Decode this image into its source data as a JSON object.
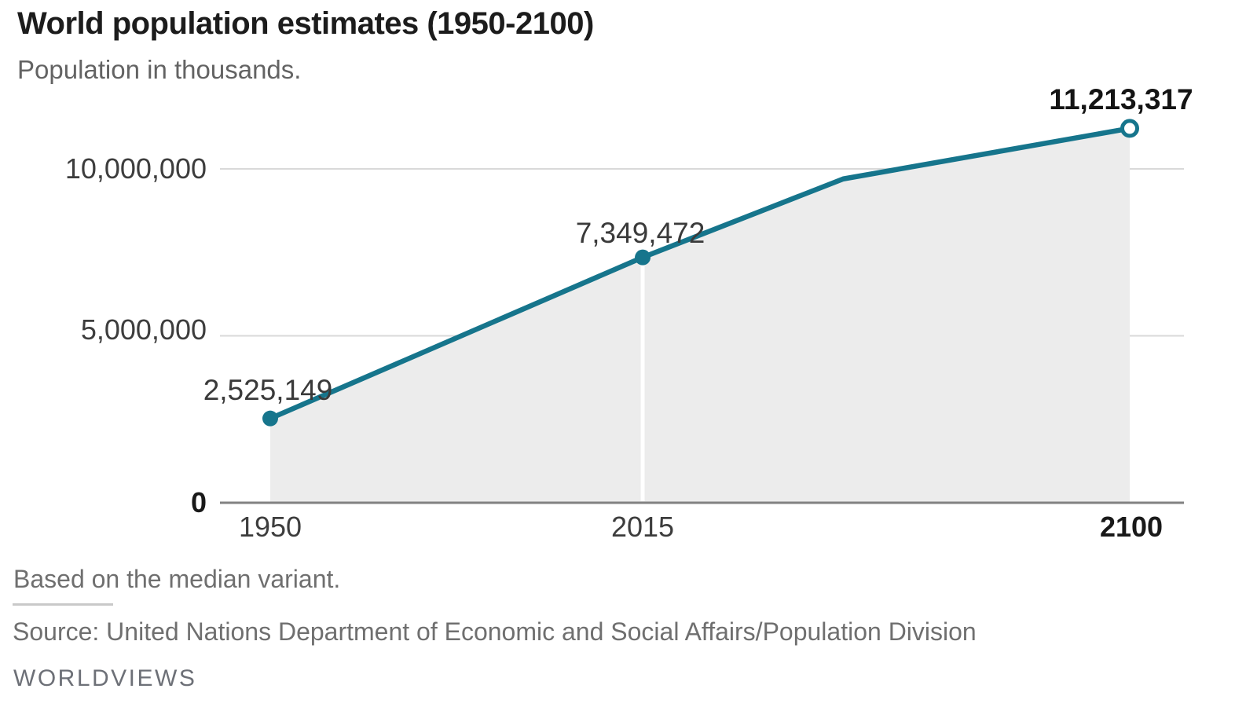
{
  "header": {
    "title": "World population estimates (1950-2100)",
    "subtitle": "Population in thousands."
  },
  "chart_data": {
    "type": "area",
    "title": "World population estimates (1950-2100)",
    "subtitle": "Population in thousands.",
    "x": [
      1950,
      2015,
      2050,
      2100
    ],
    "values": [
      2525149,
      7349472,
      9700000,
      11213317
    ],
    "xlim": [
      1950,
      2100
    ],
    "ylim": [
      0,
      11500000
    ],
    "grid": true,
    "legend": false,
    "y_ticks": [
      {
        "value": 0,
        "label": "0",
        "bold": true
      },
      {
        "value": 5000000,
        "label": "5,000,000",
        "bold": false
      },
      {
        "value": 10000000,
        "label": "10,000,000",
        "bold": false
      }
    ],
    "x_ticks": [
      {
        "value": 1950,
        "label": "1950",
        "bold": false
      },
      {
        "value": 2015,
        "label": "2015",
        "bold": false
      },
      {
        "value": 2100,
        "label": "2100",
        "bold": true
      }
    ],
    "point_labels": [
      {
        "x": 1950,
        "value": 2525149,
        "label": "2,525,149",
        "bold": false,
        "marker": "filled",
        "separator": false
      },
      {
        "x": 2015,
        "value": 7349472,
        "label": "7,349,472",
        "bold": false,
        "marker": "filled",
        "separator": true
      },
      {
        "x": 2100,
        "value": 11213317,
        "label": "11,213,317",
        "bold": true,
        "marker": "open",
        "separator": false
      }
    ],
    "colors": {
      "line": "#16758c",
      "area": "#ececec",
      "grid": "#d9d9d9",
      "axis": "#828282",
      "separator": "#ffffff",
      "open_marker_fill": "#ffffff"
    }
  },
  "footer": {
    "note": "Based on the median variant.",
    "source": "Source: United Nations Department of Economic and Social Affairs/Population Division",
    "brand": "WORLDVIEWS"
  }
}
